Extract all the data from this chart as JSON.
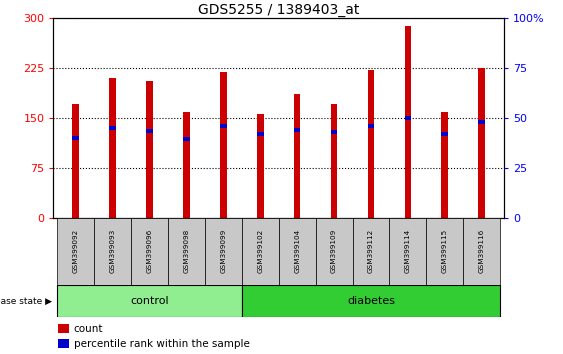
{
  "title": "GDS5255 / 1389403_at",
  "samples": [
    "GSM399092",
    "GSM399093",
    "GSM399096",
    "GSM399098",
    "GSM399099",
    "GSM399102",
    "GSM399104",
    "GSM399109",
    "GSM399112",
    "GSM399114",
    "GSM399115",
    "GSM399116"
  ],
  "counts": [
    170,
    210,
    205,
    158,
    218,
    155,
    185,
    170,
    222,
    288,
    158,
    225
  ],
  "percentile_values": [
    120,
    135,
    130,
    118,
    138,
    125,
    132,
    128,
    138,
    150,
    125,
    143
  ],
  "n_control": 5,
  "n_diabetes": 7,
  "bar_color": "#cc0000",
  "blue_color": "#0000cc",
  "left_ylim": [
    0,
    300
  ],
  "right_ylim": [
    0,
    100
  ],
  "left_yticks": [
    0,
    75,
    150,
    225,
    300
  ],
  "right_yticks": [
    0,
    25,
    50,
    75,
    100
  ],
  "right_yticklabels": [
    "0",
    "25",
    "50",
    "75",
    "100%"
  ],
  "control_color": "#90ee90",
  "diabetes_color": "#32cd32",
  "bg_color": "#c8c8c8",
  "bar_width": 0.18,
  "blue_bar_height": 6,
  "title_fontsize": 10
}
